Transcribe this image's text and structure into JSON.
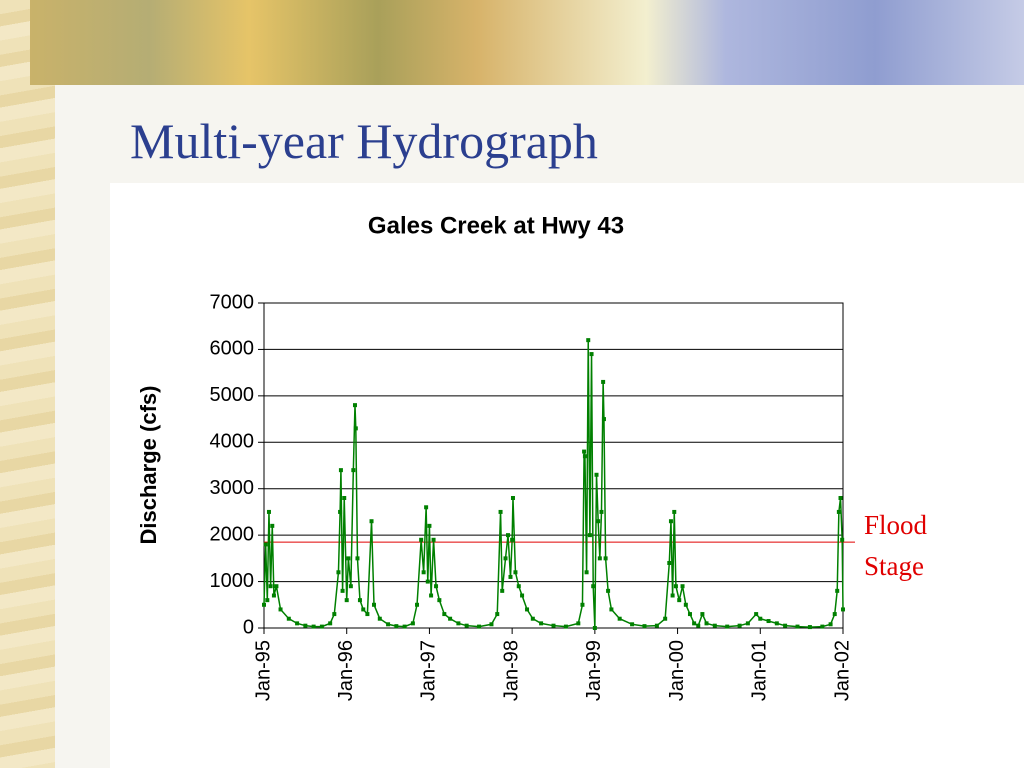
{
  "slide_title": "Multi-year Hydrograph",
  "chart_data": {
    "type": "line",
    "title": "Gales Creek at Hwy 43",
    "y_label": "Discharge (cfs)",
    "x": [
      1995.0,
      1995.02,
      1995.04,
      1995.06,
      1995.08,
      1995.1,
      1995.12,
      1995.15,
      1995.2,
      1995.3,
      1995.4,
      1995.5,
      1995.6,
      1995.7,
      1995.8,
      1995.85,
      1995.9,
      1995.92,
      1995.93,
      1995.95,
      1995.97,
      1996.0,
      1996.02,
      1996.05,
      1996.08,
      1996.1,
      1996.11,
      1996.13,
      1996.16,
      1996.2,
      1996.25,
      1996.3,
      1996.33,
      1996.4,
      1996.5,
      1996.6,
      1996.7,
      1996.8,
      1996.85,
      1996.9,
      1996.93,
      1996.96,
      1996.98,
      1997.0,
      1997.02,
      1997.05,
      1997.08,
      1997.12,
      1997.18,
      1997.25,
      1997.35,
      1997.45,
      1997.6,
      1997.75,
      1997.82,
      1997.86,
      1997.88,
      1997.92,
      1997.95,
      1997.98,
      1998.0,
      1998.01,
      1998.04,
      1998.08,
      1998.12,
      1998.18,
      1998.25,
      1998.35,
      1998.5,
      1998.65,
      1998.8,
      1998.85,
      1998.87,
      1998.88,
      1998.9,
      1998.92,
      1998.94,
      1998.96,
      1998.98,
      1999.0,
      1999.02,
      1999.04,
      1999.06,
      1999.08,
      1999.1,
      1999.11,
      1999.13,
      1999.16,
      1999.2,
      1999.3,
      1999.45,
      1999.6,
      1999.75,
      1999.85,
      1999.9,
      1999.92,
      1999.94,
      1999.96,
      1999.98,
      2000.02,
      2000.06,
      2000.1,
      2000.15,
      2000.2,
      2000.25,
      2000.3,
      2000.35,
      2000.45,
      2000.6,
      2000.75,
      2000.85,
      2000.95,
      2001.0,
      2001.1,
      2001.2,
      2001.3,
      2001.45,
      2001.6,
      2001.75,
      2001.85,
      2001.9,
      2001.93,
      2001.95,
      2001.97,
      2001.99,
      2002.0
    ],
    "series": [
      {
        "name": "Discharge",
        "color": "#008000",
        "values": [
          500,
          1800,
          600,
          2500,
          900,
          2200,
          700,
          900,
          400,
          200,
          100,
          50,
          30,
          30,
          100,
          300,
          1200,
          2500,
          3400,
          800,
          2800,
          600,
          1500,
          900,
          3400,
          4800,
          4300,
          1500,
          600,
          400,
          300,
          2300,
          500,
          200,
          80,
          40,
          30,
          100,
          500,
          1900,
          1200,
          2600,
          1000,
          2200,
          700,
          1900,
          900,
          600,
          300,
          200,
          100,
          50,
          30,
          80,
          300,
          2500,
          800,
          1500,
          2000,
          1100,
          1900,
          2800,
          1200,
          900,
          700,
          400,
          200,
          100,
          50,
          30,
          100,
          500,
          3800,
          3700,
          1200,
          6200,
          2000,
          5900,
          900,
          0,
          3300,
          2300,
          1500,
          2500,
          5300,
          4500,
          1500,
          800,
          400,
          200,
          80,
          40,
          50,
          200,
          1400,
          2300,
          700,
          2500,
          900,
          600,
          900,
          500,
          300,
          100,
          50,
          300,
          100,
          50,
          30,
          50,
          100,
          300,
          200,
          150,
          100,
          50,
          30,
          20,
          30,
          80,
          300,
          800,
          2500,
          2800,
          1900,
          400
        ]
      }
    ],
    "xlim": [
      1995,
      2002
    ],
    "xticks": [
      {
        "value": 1995,
        "label": "Jan-95"
      },
      {
        "value": 1996,
        "label": "Jan-96"
      },
      {
        "value": 1997,
        "label": "Jan-97"
      },
      {
        "value": 1998,
        "label": "Jan-98"
      },
      {
        "value": 1999,
        "label": "Jan-99"
      },
      {
        "value": 2000,
        "label": "Jan-00"
      },
      {
        "value": 2001,
        "label": "Jan-01"
      },
      {
        "value": 2002,
        "label": "Jan-02"
      }
    ],
    "ylim": [
      0,
      7000
    ],
    "yticks": [
      0,
      1000,
      2000,
      3000,
      4000,
      5000,
      6000,
      7000
    ],
    "grid": true,
    "reference_line": {
      "value": 1850,
      "label": "Flood Stage",
      "color": "#e00000"
    }
  }
}
